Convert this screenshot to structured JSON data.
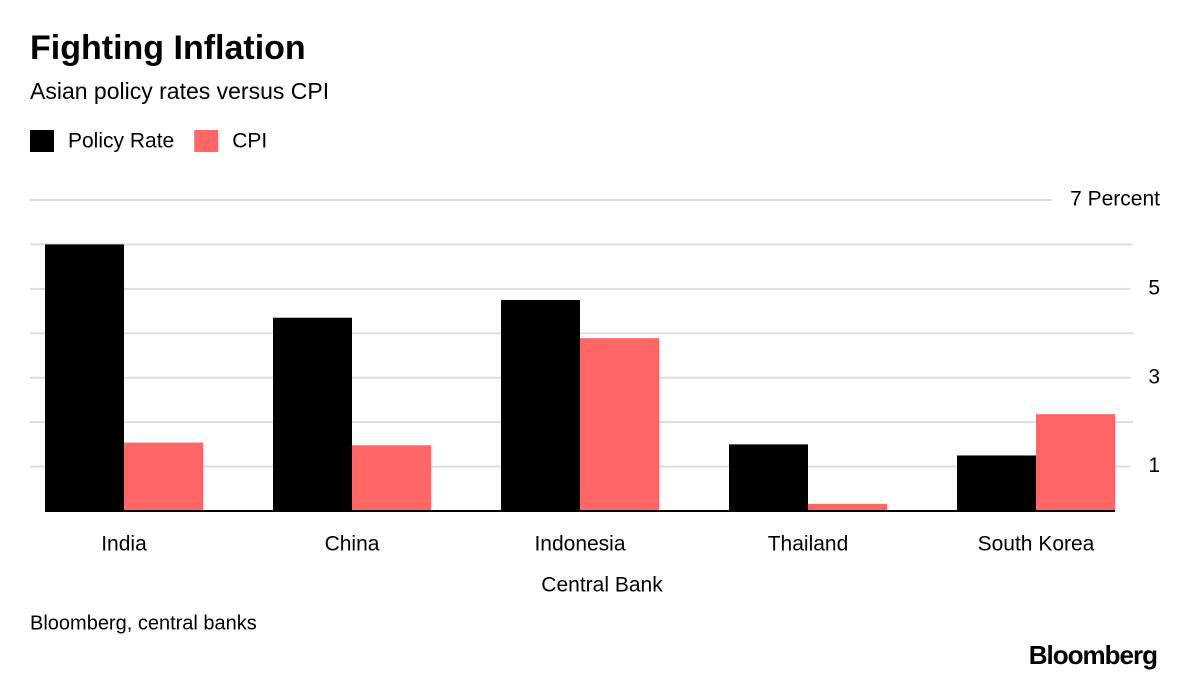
{
  "chart_data": {
    "type": "bar",
    "title": "Fighting Inflation",
    "subtitle": "Asian policy rates versus CPI",
    "x_label": "Central Bank",
    "source": "Bloomberg, central banks",
    "brand": "Bloomberg",
    "categories": [
      "India",
      "China",
      "Indonesia",
      "Thailand",
      "South Korea"
    ],
    "series": [
      {
        "name": "Policy Rate",
        "color": "#000000",
        "values": [
          6.0,
          4.35,
          4.75,
          1.5,
          1.25
        ]
      },
      {
        "name": "CPI",
        "color": "#ff6666",
        "values": [
          1.54,
          1.48,
          3.89,
          0.16,
          2.18
        ]
      }
    ],
    "ylim": [
      0,
      7
    ],
    "yticks": [
      1,
      3,
      5,
      {
        "value": 7,
        "label": "7 Percent"
      }
    ],
    "minor_yticks": [
      2,
      4,
      6
    ],
    "grid": true
  }
}
